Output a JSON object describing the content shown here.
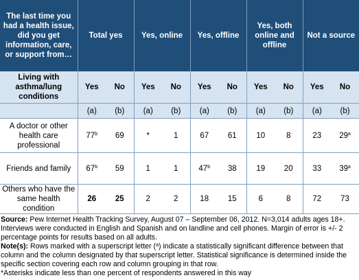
{
  "header": {
    "question": "The last time you had a health issue, did you get information, care, or support from…",
    "groups": [
      "Total yes",
      "Yes, online",
      "Yes, offline",
      "Yes, both online and offline",
      "Not a source"
    ]
  },
  "subheader": {
    "group_label": "Living with asthma/lung conditions",
    "cols": [
      "Yes",
      "No",
      "Yes",
      "No",
      "Yes",
      "No",
      "Yes",
      "No",
      "Yes",
      "No"
    ],
    "letters": [
      "(a)",
      "(b)",
      "(a)",
      "(b)",
      "(a)",
      "(b)",
      "(a)",
      "(b)",
      "(a)",
      "(b)"
    ]
  },
  "rows": [
    {
      "label": "A doctor or other health care professional",
      "cells": [
        {
          "v": "77",
          "sup": "b"
        },
        {
          "v": "69",
          "sup": ""
        },
        {
          "v": "*",
          "sup": ""
        },
        {
          "v": "1",
          "sup": ""
        },
        {
          "v": "67",
          "sup": ""
        },
        {
          "v": "61",
          "sup": ""
        },
        {
          "v": "10",
          "sup": ""
        },
        {
          "v": "8",
          "sup": ""
        },
        {
          "v": "23",
          "sup": ""
        },
        {
          "v": "29",
          "sup": "a"
        }
      ]
    },
    {
      "label": "Friends and family",
      "cells": [
        {
          "v": "67",
          "sup": "b"
        },
        {
          "v": "59",
          "sup": ""
        },
        {
          "v": "1",
          "sup": ""
        },
        {
          "v": "1",
          "sup": ""
        },
        {
          "v": "47",
          "sup": "b"
        },
        {
          "v": "38",
          "sup": ""
        },
        {
          "v": "19",
          "sup": ""
        },
        {
          "v": "20",
          "sup": ""
        },
        {
          "v": "33",
          "sup": ""
        },
        {
          "v": "39",
          "sup": "a"
        }
      ]
    },
    {
      "label": "Others who have the same health condition",
      "cells": [
        {
          "v": "26",
          "sup": ""
        },
        {
          "v": "25",
          "sup": ""
        },
        {
          "v": "2",
          "sup": ""
        },
        {
          "v": "2",
          "sup": ""
        },
        {
          "v": "18",
          "sup": ""
        },
        {
          "v": "15",
          "sup": ""
        },
        {
          "v": "6",
          "sup": ""
        },
        {
          "v": "8",
          "sup": ""
        },
        {
          "v": "72",
          "sup": ""
        },
        {
          "v": "73",
          "sup": ""
        }
      ]
    }
  ],
  "footer": {
    "source_label": "Source:",
    "source_text": " Pew Internet Health Tracking Survey, August 07 – September 06, 2012. N=3,014 adults ages 18+.",
    "line2": "Interviews were conducted in English and Spanish and on landline and cell phones.  Margin of error is +/- 2",
    "line3": "percentage points for results based on all adults.",
    "note_label": "Note(s):",
    "note_a": " Rows marked with a superscript letter (",
    "note_sup": "a",
    "note_b": ") indicate a statistically significant difference between that",
    "line5": "column and the column designated by that superscript letter. Statistical significance is determined inside the",
    "line6": "specific section covering each row and column grouping in that row.",
    "line7": "*Asterisks indicate less than one percent of respondents answered in this way"
  }
}
